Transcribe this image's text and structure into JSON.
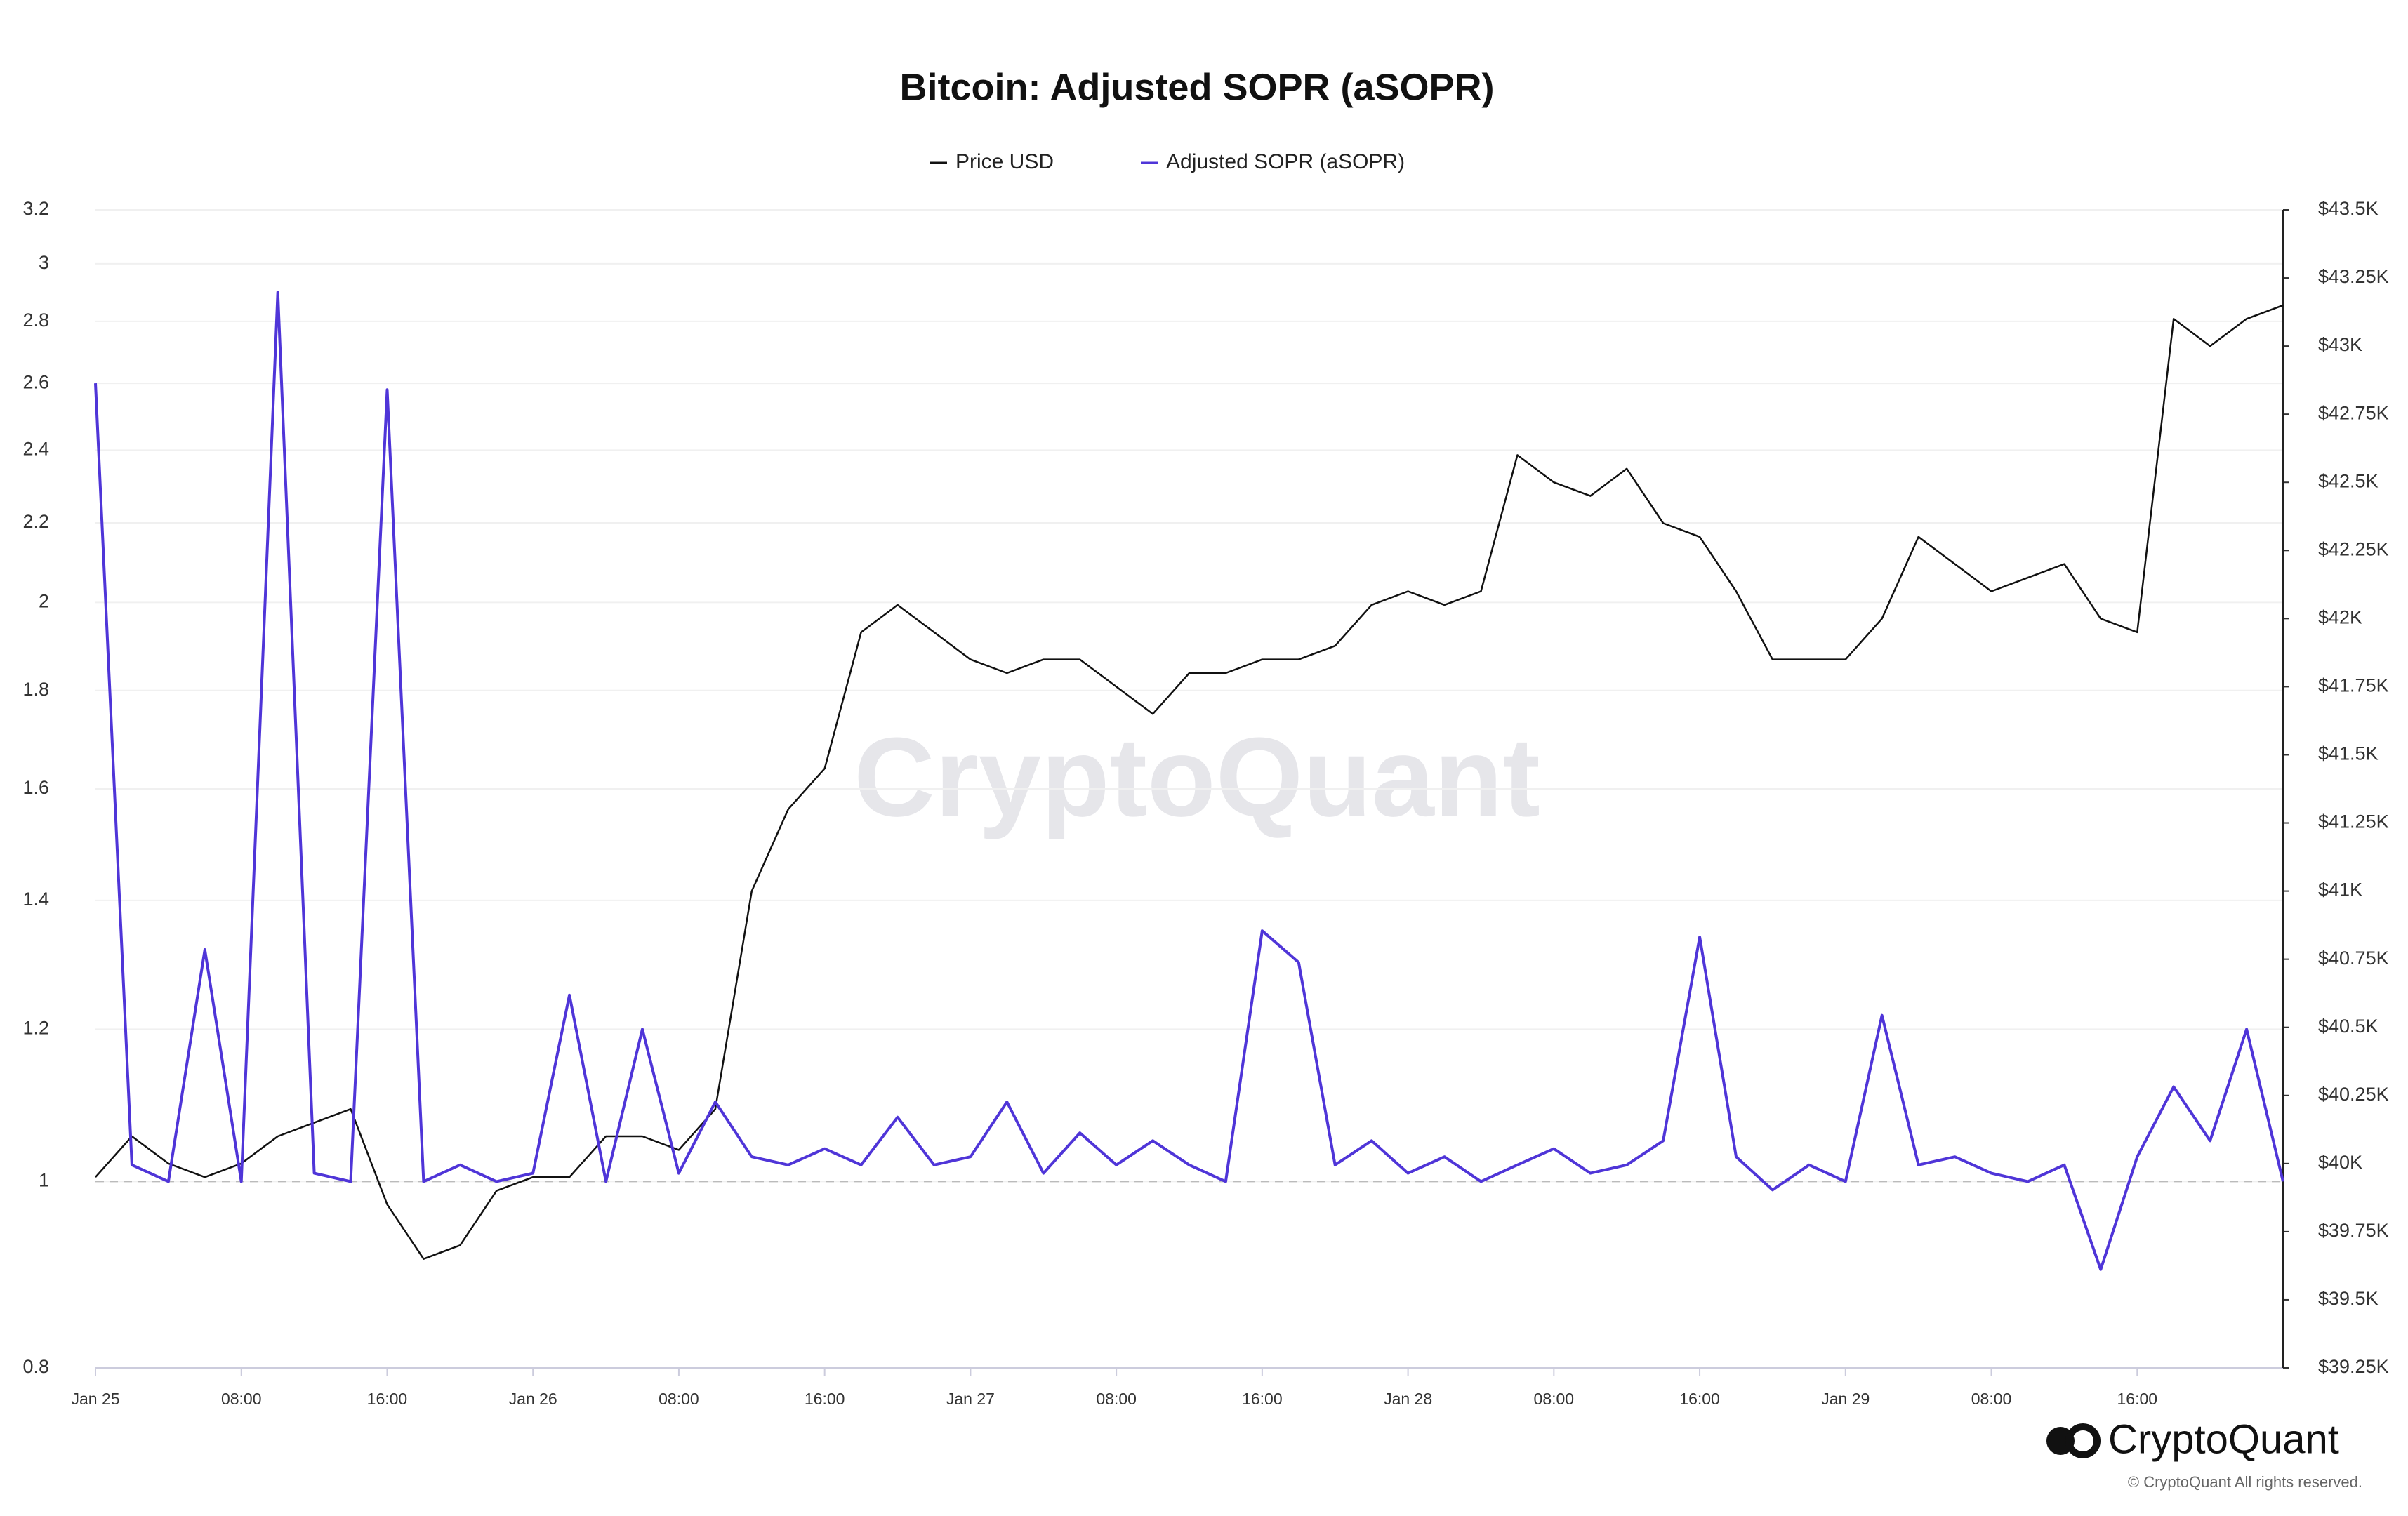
{
  "chart_data": {
    "type": "line",
    "title": "Bitcoin: Adjusted SOPR (aSOPR)",
    "watermark": "CryptoQuant",
    "brand": "CryptoQuant",
    "copyright": "© CryptoQuant All rights reserved.",
    "categories": [
      "Jan 25",
      null,
      null,
      null,
      "08:00",
      null,
      null,
      null,
      "16:00",
      null,
      null,
      null,
      "Jan 26",
      null,
      null,
      null,
      "08:00",
      null,
      null,
      null,
      "16:00",
      null,
      null,
      null,
      "Jan 27",
      null,
      null,
      null,
      "08:00",
      null,
      null,
      null,
      "16:00",
      null,
      null,
      null,
      "Jan 28",
      null,
      null,
      null,
      "08:00",
      null,
      null,
      null,
      "16:00",
      null,
      null,
      null,
      "Jan 29",
      null,
      null,
      null,
      "08:00",
      null,
      null,
      null,
      "16:00",
      null,
      null,
      null,
      null
    ],
    "series": [
      {
        "name": "Price USD",
        "color": "#111111",
        "axis": "y2",
        "values": [
          39950,
          40100,
          40000,
          39950,
          40000,
          40100,
          40150,
          40200,
          39850,
          39650,
          39700,
          39900,
          39950,
          39950,
          40100,
          40100,
          40050,
          40200,
          41000,
          41300,
          41450,
          41950,
          42050,
          41950,
          41850,
          41800,
          41850,
          41850,
          41750,
          41650,
          41800,
          41800,
          41850,
          41850,
          41900,
          42050,
          42100,
          42050,
          42100,
          42600,
          42500,
          42450,
          42550,
          42350,
          42300,
          42100,
          41850,
          41850,
          41850,
          42000,
          42300,
          42200,
          42100,
          42150,
          42200,
          42000,
          41950,
          43100,
          43000,
          43100,
          43150
        ]
      },
      {
        "name": "Adjusted SOPR (aSOPR)",
        "color": "#4f35d8",
        "values": [
          2.6,
          1.02,
          1.0,
          1.32,
          1.0,
          2.9,
          1.01,
          1.0,
          2.58,
          1.0,
          1.02,
          1.0,
          1.01,
          1.25,
          1.0,
          1.2,
          1.01,
          1.1,
          1.03,
          1.02,
          1.04,
          1.02,
          1.08,
          1.02,
          1.03,
          1.1,
          1.01,
          1.06,
          1.02,
          1.05,
          1.02,
          1.0,
          1.35,
          1.3,
          1.02,
          1.05,
          1.01,
          1.03,
          1.0,
          1.02,
          1.04,
          1.01,
          1.02,
          1.05,
          1.34,
          1.03,
          0.99,
          1.02,
          1.0,
          1.22,
          1.02,
          1.03,
          1.01,
          1.0,
          1.02,
          0.9,
          1.03,
          1.12,
          1.05,
          1.2,
          1.0
        ]
      }
    ],
    "log_scale": true,
    "baseline": 1,
    "ylim": [
      0.8,
      3.2
    ],
    "yticks": [
      0.8,
      1,
      1.2,
      1.4,
      1.6,
      1.8,
      2,
      2.2,
      2.4,
      2.6,
      2.8,
      3,
      3.2
    ],
    "y2lim": [
      39250,
      43500
    ],
    "y2ticks": [
      {
        "value": 39250,
        "label": "$39.25K"
      },
      {
        "value": 39500,
        "label": "$39.5K"
      },
      {
        "value": 39750,
        "label": "$39.75K"
      },
      {
        "value": 40000,
        "label": "$40K"
      },
      {
        "value": 40250,
        "label": "$40.25K"
      },
      {
        "value": 40500,
        "label": "$40.5K"
      },
      {
        "value": 40750,
        "label": "$40.75K"
      },
      {
        "value": 41000,
        "label": "$41K"
      },
      {
        "value": 41250,
        "label": "$41.25K"
      },
      {
        "value": 41500,
        "label": "$41.5K"
      },
      {
        "value": 41750,
        "label": "$41.75K"
      },
      {
        "value": 42000,
        "label": "$42K"
      },
      {
        "value": 42250,
        "label": "$42.25K"
      },
      {
        "value": 42500,
        "label": "$42.5K"
      },
      {
        "value": 42750,
        "label": "$42.75K"
      },
      {
        "value": 43000,
        "label": "$43K"
      },
      {
        "value": 43250,
        "label": "$43.25K"
      },
      {
        "value": 43500,
        "label": "$43.5K"
      }
    ],
    "grid": true,
    "legend": "top"
  }
}
